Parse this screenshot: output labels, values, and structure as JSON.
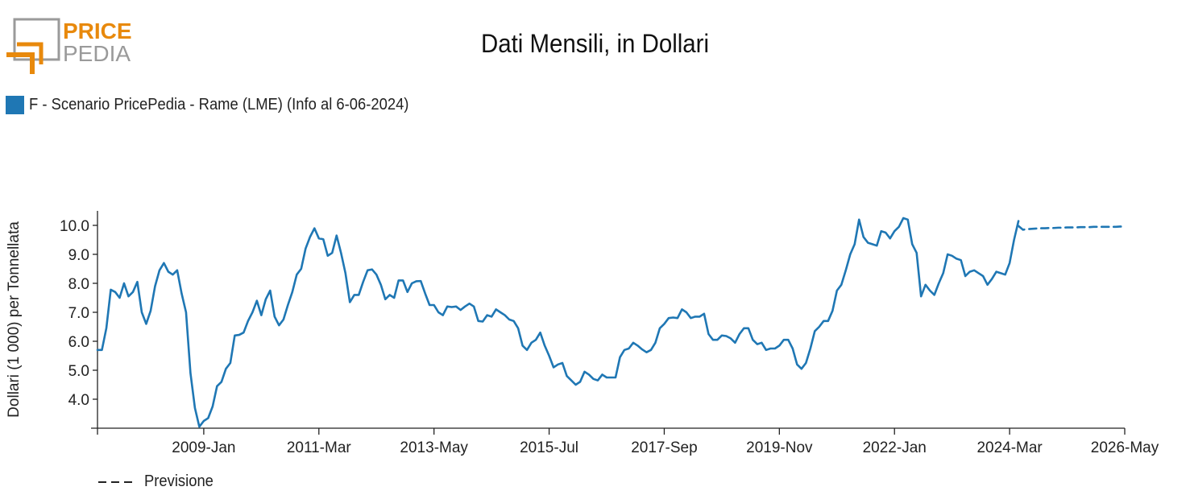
{
  "header": {
    "logo_text_top": "PRICE",
    "logo_text_bottom": "PEDIA",
    "title": "Dati Mensili, in Dollari"
  },
  "legend": {
    "label": "F - Scenario PricePedia - Rame (LME) (Info al 6-06-2024)",
    "color": "#1f77b4"
  },
  "forecast_legend": {
    "label": "Previsione"
  },
  "colors": {
    "brand_orange": "#e8890c",
    "brand_gray": "#9a9a9a",
    "series": "#1f77b4"
  },
  "chart_data": {
    "type": "line",
    "title": "Dati Mensili, in Dollari",
    "xlabel": "",
    "ylabel": "Dollari (1 000) per Tonnellata",
    "x_start": "2007-01",
    "x_end": "2026-05",
    "xticks": [
      "2009-Jan",
      "2011-Mar",
      "2013-May",
      "2015-Jul",
      "2017-Sep",
      "2019-Nov",
      "2022-Jan",
      "2024-Mar",
      "2026-May"
    ],
    "yticks": [
      "4.0",
      "5.0",
      "6.0",
      "7.0",
      "8.0",
      "9.0",
      "10.0"
    ],
    "ylim": [
      3.0,
      10.5
    ],
    "grid": false,
    "legend_position": "top-left",
    "series": [
      {
        "name": "F - Scenario PricePedia - Rame (LME) (Info al 6-06-2024)",
        "style": "solid",
        "start": "2007-01",
        "values": [
          5.7,
          5.7,
          6.45,
          7.78,
          7.7,
          7.5,
          8.0,
          7.55,
          7.7,
          8.05,
          7.0,
          6.6,
          7.05,
          7.9,
          8.45,
          8.7,
          8.4,
          8.3,
          8.45,
          7.65,
          7.0,
          4.9,
          3.7,
          3.05,
          3.25,
          3.35,
          3.75,
          4.45,
          4.6,
          5.05,
          5.25,
          6.2,
          6.22,
          6.3,
          6.7,
          7.0,
          7.4,
          6.9,
          7.45,
          7.75,
          6.85,
          6.55,
          6.75,
          7.25,
          7.7,
          8.3,
          8.5,
          9.2,
          9.6,
          9.9,
          9.55,
          9.52,
          8.95,
          9.05,
          9.65,
          9.05,
          8.35,
          7.35,
          7.6,
          7.6,
          8.05,
          8.45,
          8.48,
          8.3,
          7.95,
          7.45,
          7.6,
          7.5,
          8.1,
          8.1,
          7.7,
          8.0,
          8.07,
          8.08,
          7.65,
          7.25,
          7.25,
          7.0,
          6.9,
          7.2,
          7.18,
          7.2,
          7.08,
          7.2,
          7.3,
          7.2,
          6.7,
          6.68,
          6.9,
          6.85,
          7.1,
          7.0,
          6.9,
          6.75,
          6.7,
          6.45,
          5.85,
          5.7,
          5.95,
          6.05,
          6.3,
          5.85,
          5.5,
          5.1,
          5.2,
          5.25,
          4.8,
          4.65,
          4.5,
          4.6,
          4.95,
          4.85,
          4.7,
          4.65,
          4.85,
          4.75,
          4.75,
          4.75,
          5.45,
          5.7,
          5.75,
          5.95,
          5.85,
          5.72,
          5.62,
          5.7,
          5.95,
          6.45,
          6.6,
          6.8,
          6.82,
          6.8,
          7.1,
          7.0,
          6.8,
          6.85,
          6.85,
          6.95,
          6.25,
          6.05,
          6.05,
          6.2,
          6.18,
          6.1,
          5.95,
          6.25,
          6.45,
          6.45,
          6.05,
          5.9,
          5.95,
          5.7,
          5.75,
          5.75,
          5.85,
          6.05,
          6.05,
          5.75,
          5.2,
          5.05,
          5.25,
          5.75,
          6.35,
          6.5,
          6.7,
          6.7,
          7.05,
          7.75,
          7.95,
          8.45,
          9.0,
          9.35,
          10.2,
          9.6,
          9.4,
          9.35,
          9.3,
          9.8,
          9.75,
          9.55,
          9.8,
          9.95,
          10.25,
          10.2,
          9.35,
          9.05,
          7.55,
          7.95,
          7.75,
          7.6,
          8.0,
          8.35,
          9.0,
          8.95,
          8.85,
          8.8,
          8.25,
          8.4,
          8.45,
          8.35,
          8.25,
          7.95,
          8.15,
          8.4,
          8.35,
          8.3,
          8.7,
          9.5,
          10.15
        ]
      },
      {
        "name": "Previsione",
        "style": "dashed",
        "start": "2024-05",
        "values": [
          9.98,
          9.85,
          9.87,
          9.88,
          9.89,
          9.9,
          9.9,
          9.91,
          9.91,
          9.92,
          9.92,
          9.93,
          9.93,
          9.93,
          9.94,
          9.94,
          9.94,
          9.95,
          9.95,
          9.95,
          9.95,
          9.95,
          9.95,
          9.96,
          9.96
        ]
      }
    ]
  }
}
